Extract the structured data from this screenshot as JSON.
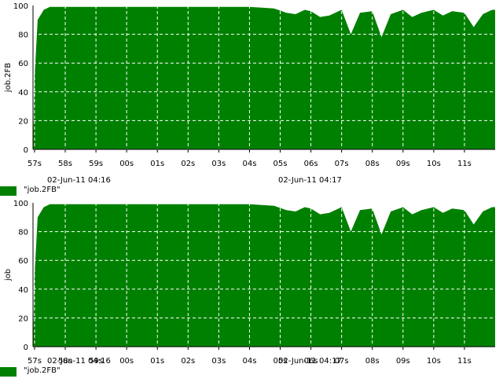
{
  "colors": {
    "series": "#008000",
    "grid": "#ffffff",
    "axis": "#000000"
  },
  "chart_data": [
    {
      "type": "area",
      "ylabel": "job.2FB",
      "ylim": [
        0,
        100
      ],
      "yticks": [
        0,
        20,
        40,
        60,
        80,
        100
      ],
      "xticks": [
        "57s",
        "58s",
        "59s",
        "00s",
        "01s",
        "02s",
        "03s",
        "04s",
        "05s",
        "06s",
        "07s",
        "08s",
        "09s",
        "10s",
        "11s"
      ],
      "date_labels": [
        "02-Jun-11 04:16",
        "02-Jun-11 04:17"
      ],
      "legend": "\"job.2FB\"",
      "grid": true,
      "series": [
        {
          "name": "\"job.2FB\"",
          "x": [
            56.95,
            57.0,
            57.1,
            57.3,
            57.5,
            58.0,
            59.0,
            60.0,
            61.0,
            62.0,
            63.0,
            64.0,
            64.8,
            65.2,
            65.5,
            65.8,
            66.0,
            66.3,
            66.6,
            67.0,
            67.3,
            67.6,
            68.0,
            68.3,
            68.6,
            69.0,
            69.3,
            69.6,
            70.0,
            70.3,
            70.6,
            71.0,
            71.3,
            71.6,
            71.9
          ],
          "values": [
            0,
            50,
            90,
            97,
            99,
            99,
            99,
            99,
            99,
            99,
            99,
            99,
            98,
            95,
            94,
            97,
            96,
            92,
            93,
            97,
            80,
            95,
            96,
            78,
            94,
            97,
            92,
            95,
            97,
            93,
            96,
            95,
            85,
            94,
            97
          ]
        }
      ]
    },
    {
      "type": "area",
      "ylabel": "job",
      "ylim": [
        0,
        100
      ],
      "yticks": [
        0,
        20,
        40,
        60,
        80,
        100
      ],
      "xticks": [
        "57s",
        "58s",
        "59s",
        "00s",
        "01s",
        "02s",
        "03s",
        "04s",
        "05s",
        "06s",
        "07s",
        "08s",
        "09s",
        "10s",
        "11s"
      ],
      "date_labels": [
        "02-Jun-11 04:16",
        "02-Jun-11 04:17"
      ],
      "legend": "\"job.2FB\"",
      "grid": true,
      "series": [
        {
          "name": "\"job.2FB\"",
          "x": [
            56.95,
            57.0,
            57.1,
            57.3,
            57.5,
            58.0,
            59.0,
            60.0,
            61.0,
            62.0,
            63.0,
            64.0,
            64.8,
            65.2,
            65.5,
            65.8,
            66.0,
            66.3,
            66.6,
            67.0,
            67.3,
            67.6,
            68.0,
            68.3,
            68.6,
            69.0,
            69.3,
            69.6,
            70.0,
            70.3,
            70.6,
            71.0,
            71.3,
            71.6,
            71.9
          ],
          "values": [
            0,
            50,
            90,
            97,
            99,
            99,
            99,
            99,
            99,
            99,
            99,
            99,
            98,
            95,
            94,
            97,
            96,
            92,
            93,
            97,
            80,
            95,
            96,
            78,
            94,
            97,
            92,
            95,
            97,
            93,
            96,
            95,
            85,
            94,
            97
          ]
        }
      ]
    }
  ]
}
